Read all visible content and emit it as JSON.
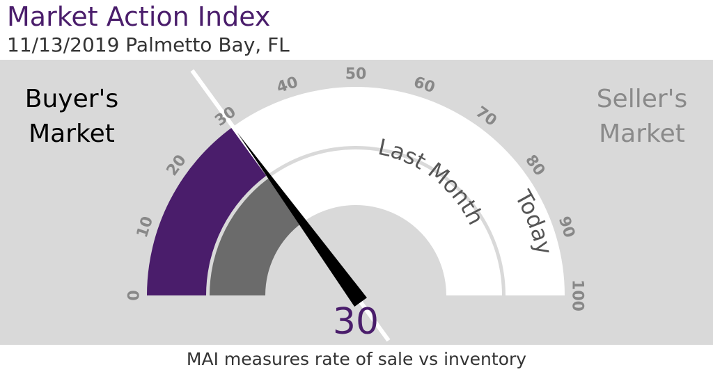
{
  "header": {
    "title": "Market Action Index",
    "subtitle": "11/13/2019 Palmetto Bay, FL"
  },
  "labels": {
    "buyers_line1": "Buyer's",
    "buyers_line2": "Market",
    "sellers_line1": "Seller's",
    "sellers_line2": "Market",
    "outer_ring": "Today",
    "inner_ring": "Last Month"
  },
  "footer": {
    "caption": "MAI measures rate of sale vs inventory"
  },
  "colors": {
    "background": "#d9d9d9",
    "today_fill": "#4a1d6b",
    "last_month_fill": "#6b6b6b",
    "track": "#ffffff",
    "needle": "#000000",
    "tick_labels": "#888888"
  },
  "chart_data": {
    "type": "gauge",
    "min": 0,
    "max": 100,
    "ticks": [
      0,
      10,
      20,
      30,
      40,
      50,
      60,
      70,
      80,
      90,
      100
    ],
    "series": [
      {
        "name": "Today",
        "value": 30
      },
      {
        "name": "Last Month",
        "value": 30
      }
    ],
    "needle_value": 30,
    "value_label": "30"
  }
}
